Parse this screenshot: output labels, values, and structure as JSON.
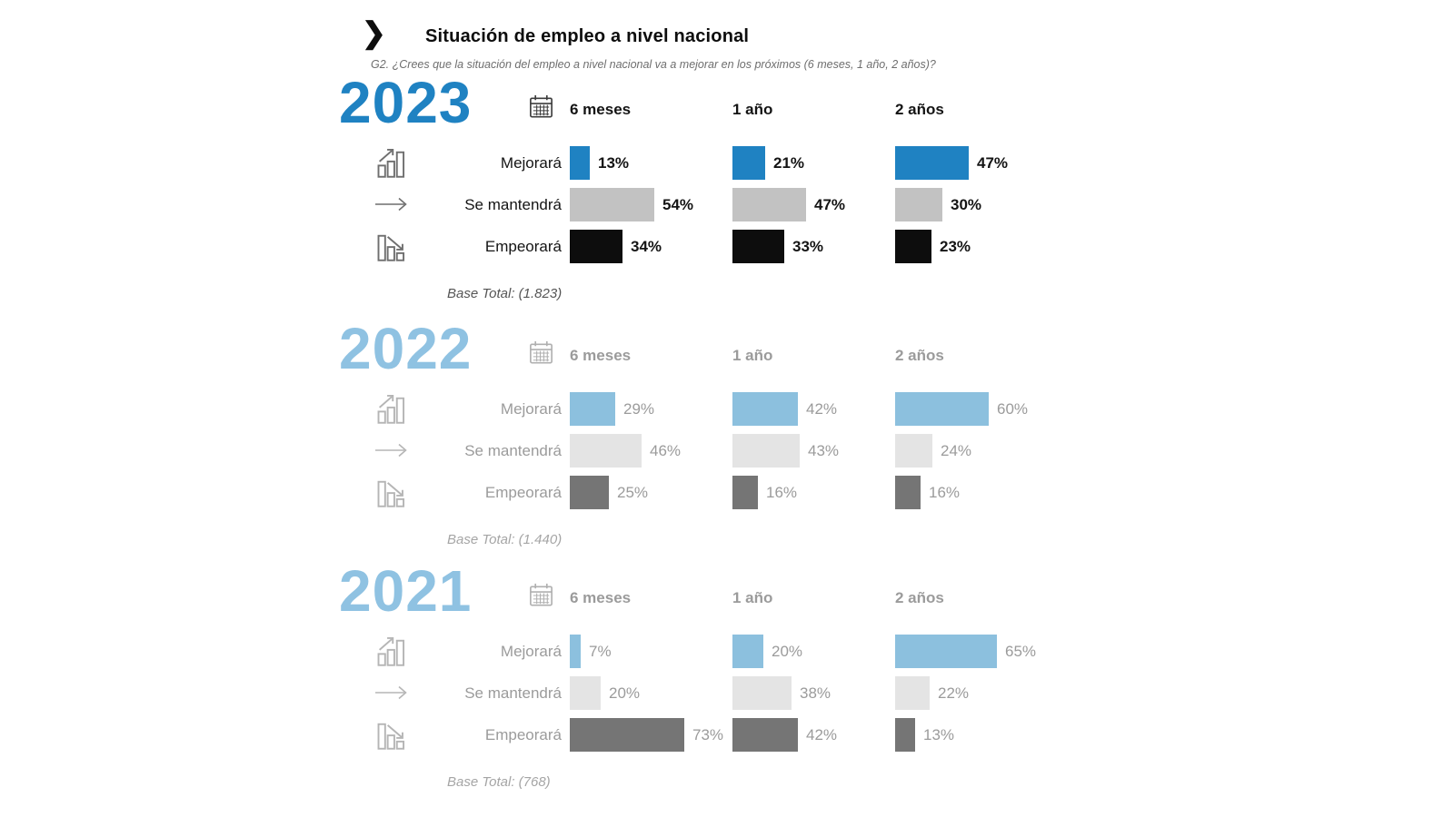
{
  "header": {
    "chevron_icon": "❯",
    "title": "Situación de empleo a nivel nacional",
    "subtitle": "G2. ¿Crees que la situación del empleo a nivel nacional va a mejorar en los próximos (6 meses, 1 año, 2 años)?"
  },
  "chart_data": {
    "type": "bar",
    "title": "Situación de empleo a nivel nacional",
    "question": "G2. ¿Crees que la situación del empleo a nivel nacional va a mejorar en los próximos (6 meses, 1 año, 2 años)?",
    "unit": "percent",
    "orientation": "horizontal",
    "categories": [
      "6 meses",
      "1 año",
      "2 años"
    ],
    "row_labels": [
      "Mejorará",
      "Se mantendrá",
      "Empeorará"
    ],
    "groups": [
      {
        "year": "2023",
        "base_total": "Base Total: (1.823)",
        "colors": {
          "year": "#1f82c2",
          "header": "#141414",
          "label": "#141414",
          "pct": "#141414",
          "icon": "#6f6f6f",
          "calendar": "#3d3d3d",
          "base": "#555555"
        },
        "series": [
          {
            "name": "Mejorará",
            "icon": "chart-up-icon",
            "color": "#1f82c2",
            "values": [
              13,
              21,
              47
            ]
          },
          {
            "name": "Se mantendrá",
            "icon": "arrow-right-icon",
            "color": "#c2c2c2",
            "values": [
              54,
              47,
              30
            ]
          },
          {
            "name": "Empeorará",
            "icon": "chart-down-icon",
            "color": "#0d0d0d",
            "values": [
              34,
              33,
              23
            ]
          }
        ]
      },
      {
        "year": "2022",
        "base_total": "Base Total: (1.440)",
        "colors": {
          "year": "#8fc2e2",
          "header": "#9b9b9b",
          "label": "#9b9b9b",
          "pct": "#9b9b9b",
          "icon": "#b5b5b5",
          "calendar": "#b0b0b0",
          "base": "#a5a5a5"
        },
        "series": [
          {
            "name": "Mejorará",
            "icon": "chart-up-icon",
            "color": "#8cc0de",
            "values": [
              29,
              42,
              60
            ]
          },
          {
            "name": "Se mantendrá",
            "icon": "arrow-right-icon",
            "color": "#e4e4e4",
            "values": [
              46,
              43,
              24
            ]
          },
          {
            "name": "Empeorará",
            "icon": "chart-down-icon",
            "color": "#757575",
            "values": [
              25,
              16,
              16
            ]
          }
        ]
      },
      {
        "year": "2021",
        "base_total": "Base Total: (768)",
        "colors": {
          "year": "#8fc2e2",
          "header": "#9b9b9b",
          "label": "#9b9b9b",
          "pct": "#9b9b9b",
          "icon": "#b5b5b5",
          "calendar": "#b0b0b0",
          "base": "#a5a5a5"
        },
        "series": [
          {
            "name": "Mejorará",
            "icon": "chart-up-icon",
            "color": "#8cc0de",
            "values": [
              7,
              20,
              65
            ]
          },
          {
            "name": "Se mantendrá",
            "icon": "arrow-right-icon",
            "color": "#e4e4e4",
            "values": [
              20,
              38,
              22
            ]
          },
          {
            "name": "Empeorará",
            "icon": "chart-down-icon",
            "color": "#757575",
            "values": [
              73,
              42,
              13
            ]
          }
        ]
      }
    ]
  }
}
